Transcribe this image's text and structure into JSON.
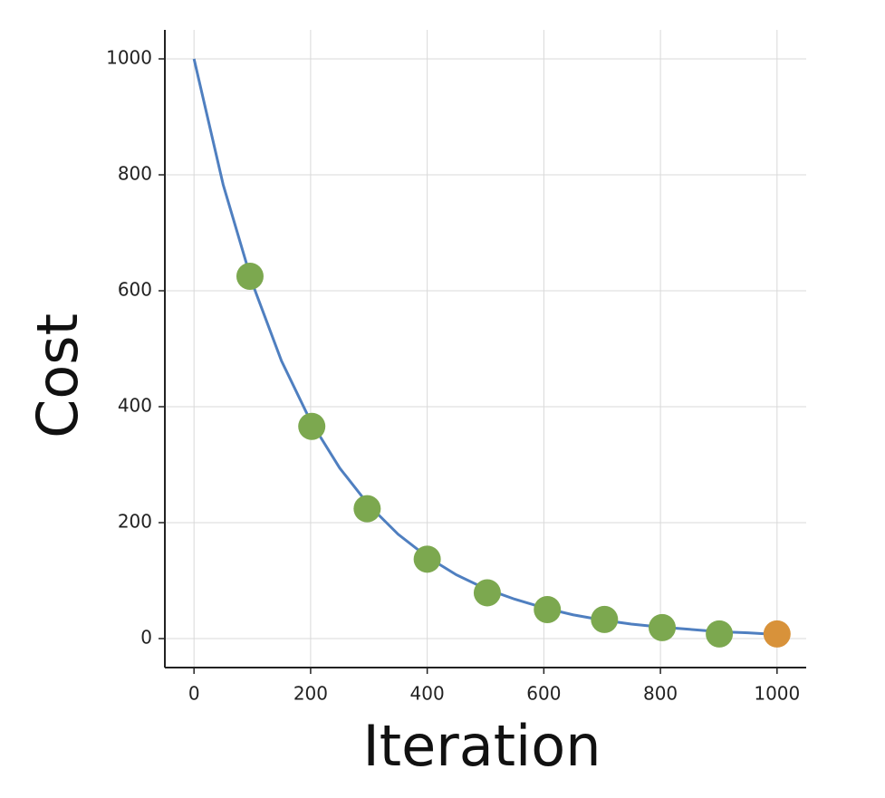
{
  "chart_data": {
    "type": "line",
    "x_label": "Iteration",
    "y_label": "Cost",
    "x": [
      0,
      50,
      100,
      150,
      200,
      250,
      300,
      350,
      400,
      450,
      500,
      550,
      600,
      650,
      700,
      750,
      800,
      850,
      900,
      950,
      1000
    ],
    "values": [
      1000,
      783,
      613,
      479,
      375,
      294,
      230,
      180,
      141,
      110,
      86,
      68,
      53,
      41,
      32,
      25,
      20,
      16,
      12,
      10,
      7
    ],
    "color": "#4f7fc0",
    "markers": {
      "x": [
        96,
        202,
        297,
        400,
        503,
        606,
        704,
        803,
        901,
        1000
      ],
      "values": [
        625,
        366,
        224,
        137,
        79,
        50,
        33,
        19,
        8,
        8
      ],
      "colors": [
        "#7ca84f",
        "#7ca84f",
        "#7ca84f",
        "#7ca84f",
        "#7ca84f",
        "#7ca84f",
        "#7ca84f",
        "#7ca84f",
        "#7ca84f",
        "#d8923a"
      ]
    },
    "xlim": [
      -50,
      1050
    ],
    "ylim": [
      -50,
      1050
    ],
    "xticks": [
      0,
      200,
      400,
      600,
      800,
      1000
    ],
    "yticks": [
      0,
      200,
      400,
      600,
      800,
      1000
    ],
    "grid": true
  }
}
